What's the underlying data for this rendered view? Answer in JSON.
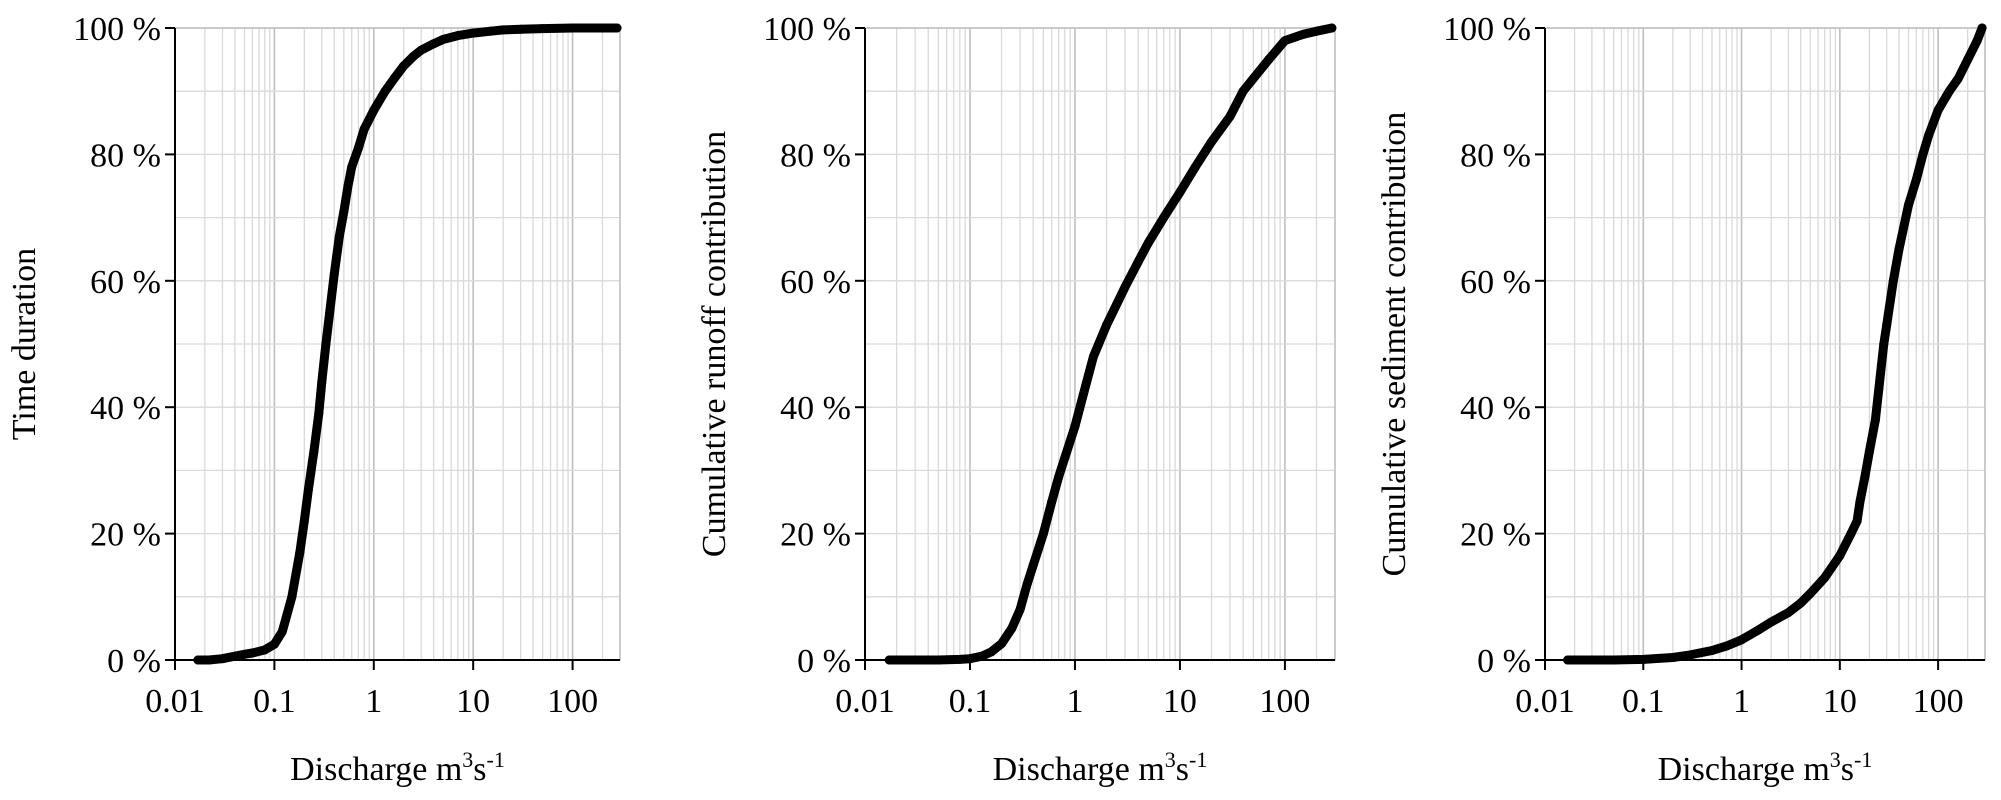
{
  "colors": {
    "series": "#000000",
    "grid": "#d9d9d9",
    "axis": "#000000"
  },
  "chart_data": [
    {
      "type": "line",
      "title": "",
      "xlabel": "Discharge m³s⁻¹",
      "xlabel_base": "Discharge m",
      "xlabel_sup1": "3",
      "xlabel_mid": "s",
      "xlabel_sup2": "-1",
      "ylabel": "Time duration",
      "x_scale": "log",
      "xlim": [
        0.01,
        300
      ],
      "ylim": [
        0,
        100
      ],
      "x_ticks": [
        "0.01",
        "0.1",
        "1",
        "10",
        "100"
      ],
      "y_ticks": [
        "0 %",
        "20 %",
        "40 %",
        "60 %",
        "80 %",
        "100 %"
      ],
      "grid": true,
      "legend": "none",
      "series": [
        {
          "x": [
            0.017,
            0.022,
            0.03,
            0.04,
            0.05,
            0.06,
            0.08,
            0.1,
            0.12,
            0.15,
            0.18,
            0.2,
            0.22,
            0.25,
            0.28,
            0.3,
            0.33,
            0.36,
            0.4,
            0.45,
            0.5,
            0.55,
            0.6,
            0.7,
            0.8,
            1,
            1.3,
            1.6,
            2,
            2.5,
            3,
            4,
            5,
            7,
            10,
            15,
            20,
            30,
            50,
            100,
            150,
            280
          ],
          "y": [
            0,
            0,
            0.2,
            0.6,
            0.9,
            1.1,
            1.6,
            2.5,
            4.5,
            10,
            17,
            22,
            27,
            33,
            39,
            44,
            50,
            55,
            61,
            67,
            71,
            75,
            78,
            81,
            84,
            87,
            90,
            92,
            94,
            95.5,
            96.5,
            97.5,
            98.2,
            98.8,
            99.2,
            99.5,
            99.7,
            99.8,
            99.9,
            100,
            100,
            100
          ]
        }
      ]
    },
    {
      "type": "line",
      "title": "",
      "xlabel": "Discharge m³s⁻¹",
      "xlabel_base": "Discharge m",
      "xlabel_sup1": "3",
      "xlabel_mid": "s",
      "xlabel_sup2": "-1",
      "ylabel": "Cumulative runoff contribution",
      "x_scale": "log",
      "xlim": [
        0.01,
        300
      ],
      "ylim": [
        0,
        100
      ],
      "x_ticks": [
        "0.01",
        "0.1",
        "1",
        "10",
        "100"
      ],
      "y_ticks": [
        "0 %",
        "20 %",
        "40 %",
        "60 %",
        "80 %",
        "100 %"
      ],
      "grid": true,
      "legend": "none",
      "series": [
        {
          "x": [
            0.017,
            0.02,
            0.03,
            0.05,
            0.08,
            0.1,
            0.13,
            0.16,
            0.2,
            0.25,
            0.3,
            0.35,
            0.4,
            0.5,
            0.6,
            0.7,
            0.8,
            1,
            1.2,
            1.5,
            2,
            3,
            4,
            5,
            7,
            10,
            14,
            20,
            30,
            40,
            50,
            70,
            100,
            150,
            200,
            280
          ],
          "y": [
            0,
            0,
            0,
            0,
            0.1,
            0.2,
            0.6,
            1.3,
            2.6,
            5,
            8,
            12,
            15,
            20,
            25,
            29,
            32,
            37,
            42,
            48,
            53,
            59,
            63,
            66,
            70,
            74,
            78,
            82,
            86,
            90,
            92,
            95,
            98,
            99,
            99.5,
            100
          ]
        }
      ]
    },
    {
      "type": "line",
      "title": "",
      "xlabel": "Discharge m³s⁻¹",
      "xlabel_base": "Discharge m",
      "xlabel_sup1": "3",
      "xlabel_mid": "s",
      "xlabel_sup2": "-1",
      "ylabel": "Cumulative sediment contribution",
      "x_scale": "log",
      "xlim": [
        0.01,
        300
      ],
      "ylim": [
        0,
        100
      ],
      "x_ticks": [
        "0.01",
        "0.1",
        "1",
        "10",
        "100"
      ],
      "y_ticks": [
        "0 %",
        "20 %",
        "40 %",
        "60 %",
        "80 %",
        "100 %"
      ],
      "grid": true,
      "legend": "none",
      "series": [
        {
          "x": [
            0.017,
            0.02,
            0.03,
            0.05,
            0.1,
            0.2,
            0.3,
            0.5,
            0.7,
            1,
            1.5,
            2,
            3,
            4,
            5,
            7,
            10,
            13,
            15,
            16,
            18,
            20,
            23,
            25,
            28,
            30,
            35,
            40,
            50,
            60,
            70,
            80,
            100,
            130,
            160,
            200,
            250,
            280
          ],
          "y": [
            0,
            0,
            0,
            0,
            0.1,
            0.4,
            0.8,
            1.5,
            2.2,
            3.2,
            4.8,
            6,
            7.5,
            9,
            10.5,
            13,
            16.5,
            20,
            22,
            25,
            29,
            33,
            38,
            43,
            50,
            53,
            60,
            65,
            72,
            76,
            80,
            83,
            87,
            90,
            92,
            95,
            98,
            100
          ]
        }
      ]
    }
  ]
}
